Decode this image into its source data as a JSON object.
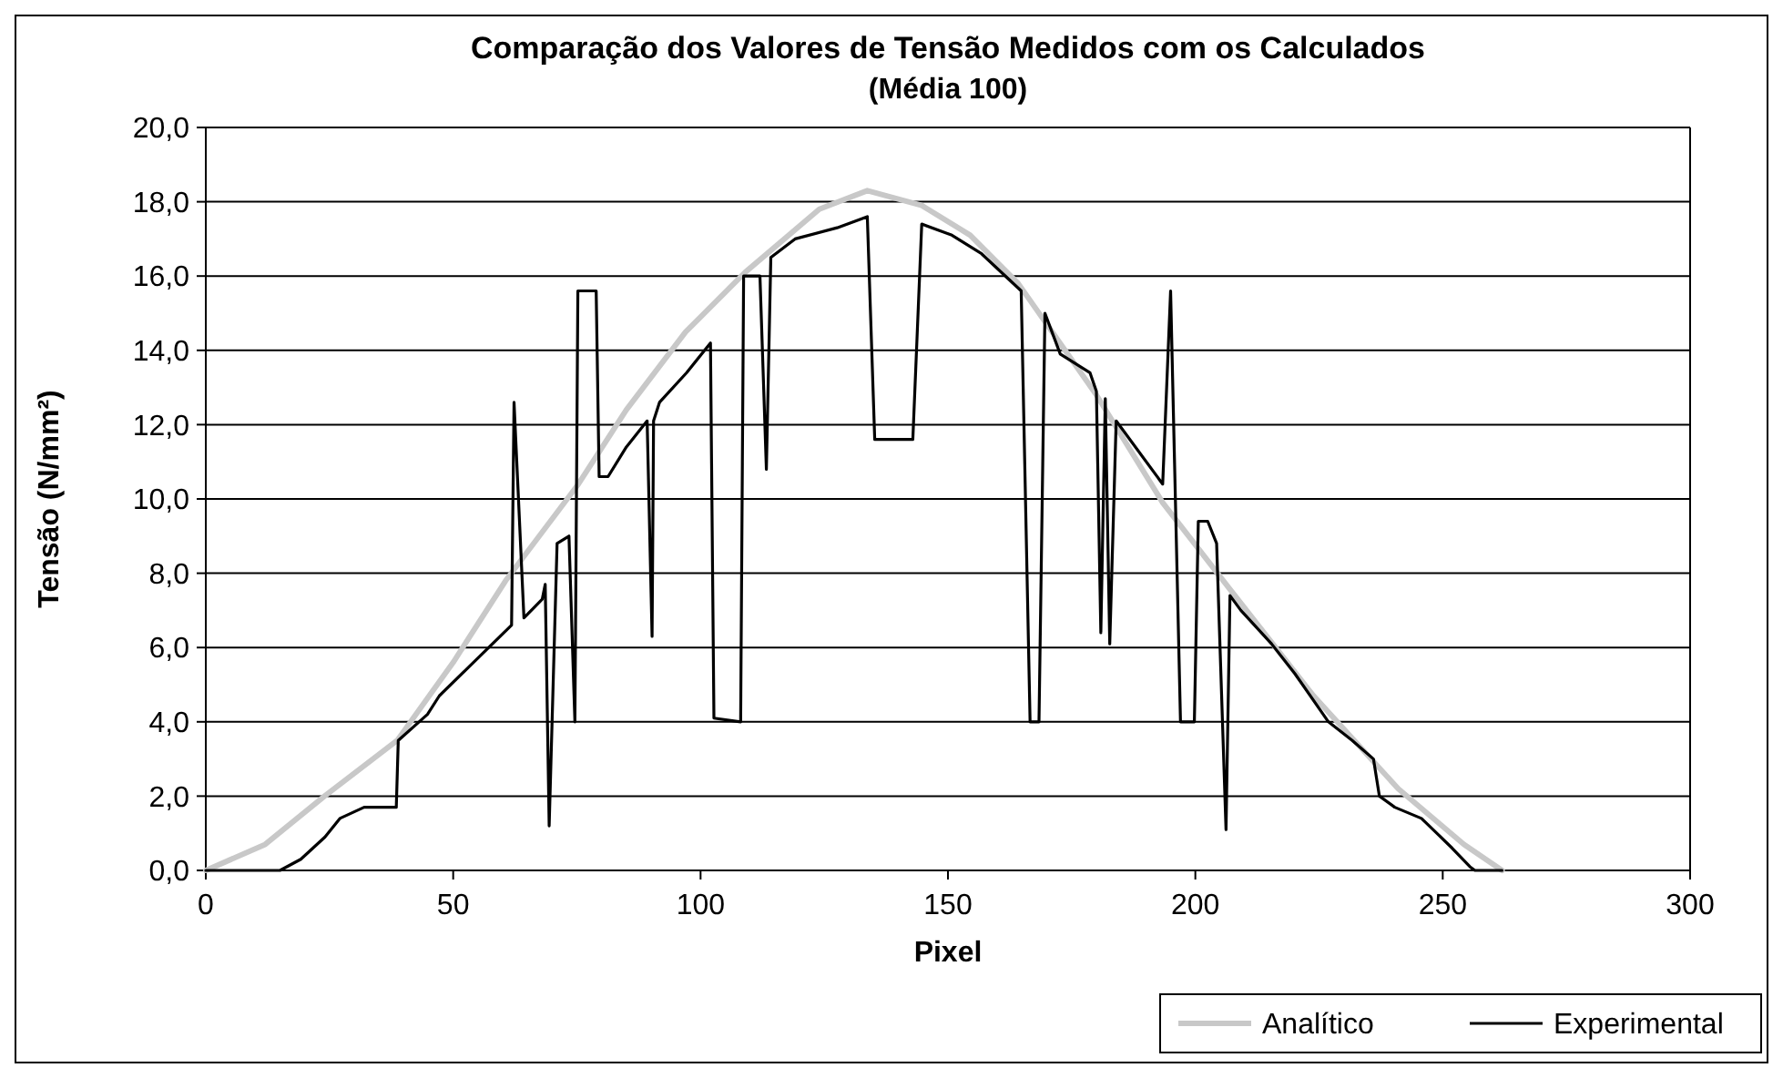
{
  "chart_data": {
    "type": "line",
    "title": "Comparação dos Valores de Tensão Medidos com os Calculados",
    "subtitle": "(Média 100)",
    "xlabel": "Pixel",
    "ylabel": "Tensão (N/mm²)",
    "xlim": [
      0,
      300
    ],
    "xticks": [
      0,
      50,
      100,
      150,
      200,
      250,
      300
    ],
    "ylim": [
      0,
      20
    ],
    "yticks": [
      {
        "value": 0,
        "label": "0,0"
      },
      {
        "value": 2,
        "label": "2,0"
      },
      {
        "value": 4,
        "label": "4,0"
      },
      {
        "value": 6,
        "label": "6,0"
      },
      {
        "value": 8,
        "label": "8,0"
      },
      {
        "value": 10,
        "label": "10,0"
      },
      {
        "value": 12,
        "label": "12,0"
      },
      {
        "value": 14,
        "label": "14,0"
      },
      {
        "value": 16,
        "label": "16,0"
      },
      {
        "value": 18,
        "label": "18,0"
      },
      {
        "value": 20,
        "label": "20,0"
      }
    ],
    "grid": "y",
    "legend": "bottom right",
    "line_style": "solid",
    "series": [
      {
        "name": "Analítico",
        "color": "#c8c8c8",
        "x": [
          0,
          12,
          24,
          38.7,
          50,
          60.6,
          75.3,
          85,
          97,
          109,
          124,
          133.7,
          144.7,
          154.5,
          164.2,
          180,
          193.4,
          206.8,
          223.9,
          241,
          254.3,
          262
        ],
        "values": [
          0,
          0.7,
          2.0,
          3.5,
          5.6,
          7.8,
          10.4,
          12.4,
          14.5,
          16.1,
          17.8,
          18.3,
          17.9,
          17.1,
          15.8,
          12.8,
          9.9,
          7.6,
          4.7,
          2.2,
          0.7,
          0
        ]
      },
      {
        "name": "Experimental",
        "color": "#000000",
        "x": [
          0,
          15,
          19.2,
          24.1,
          27.1,
          32,
          38.5,
          38.9,
          44.8,
          47.2,
          61.8,
          62.3,
          64.3,
          68,
          68.6,
          69.4,
          71,
          73.4,
          74.6,
          75.2,
          78.9,
          79.5,
          81.3,
          85,
          89.2,
          90.2,
          90.5,
          91.7,
          97.2,
          102,
          102.7,
          108.1,
          108.7,
          112,
          113.3,
          114.2,
          119.1,
          127.6,
          133.7,
          135.2,
          142.9,
          144.7,
          150.8,
          156.8,
          164.8,
          166.6,
          168.4,
          169.6,
          172.7,
          178.7,
          180,
          180.9,
          181.8,
          182.7,
          184,
          193.4,
          195,
          197,
          199.8,
          200.6,
          202.5,
          204.3,
          206.2,
          207,
          209.2,
          215.4,
          220.1,
          226.9,
          231.7,
          236,
          237.2,
          240.3,
          245.7,
          248.8,
          251.9,
          255.5,
          256.5,
          262
        ],
        "values": [
          0,
          0,
          0.3,
          0.9,
          1.4,
          1.7,
          1.7,
          3.5,
          4.2,
          4.7,
          6.6,
          12.6,
          6.8,
          7.3,
          7.7,
          1.2,
          8.8,
          9.0,
          4.0,
          15.6,
          15.6,
          10.6,
          10.6,
          11.4,
          12.1,
          6.3,
          12.1,
          12.6,
          13.4,
          14.2,
          4.1,
          4.0,
          16.0,
          16.0,
          10.8,
          16.5,
          17.0,
          17.3,
          17.6,
          11.6,
          11.6,
          17.4,
          17.1,
          16.6,
          15.6,
          4.0,
          4.0,
          15.0,
          13.9,
          13.4,
          12.9,
          6.4,
          12.7,
          6.1,
          12.1,
          10.4,
          15.6,
          4.0,
          4.0,
          9.4,
          9.4,
          8.8,
          1.1,
          7.4,
          7.0,
          6.1,
          5.3,
          4.0,
          3.5,
          3.0,
          2.0,
          1.7,
          1.4,
          1.0,
          0.6,
          0.1,
          0,
          0
        ]
      }
    ]
  }
}
